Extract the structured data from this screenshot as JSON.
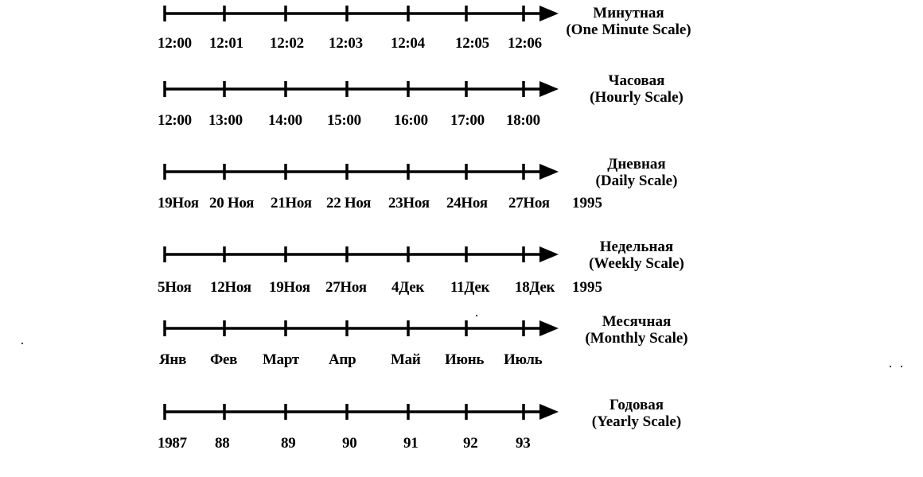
{
  "scales": [
    {
      "title_ru": "Минутная",
      "title_en": "(One Minute Scale)",
      "ticks": [
        "12:00",
        "12:01",
        "12:02",
        "12:03",
        "12:04",
        "12:05",
        "12:06"
      ],
      "year": ""
    },
    {
      "title_ru": "Часовая",
      "title_en": "(Hourly Scale)",
      "ticks": [
        "12:00",
        "13:00",
        "14:00",
        "15:00",
        "16:00",
        "17:00",
        "18:00"
      ],
      "year": ""
    },
    {
      "title_ru": "Дневная",
      "title_en": "(Daily Scale)",
      "ticks": [
        "19Ноя",
        "20 Ноя",
        "21Ноя",
        "22 Ноя",
        "23Ноя",
        "24Ноя",
        "27Ноя"
      ],
      "year": "1995"
    },
    {
      "title_ru": "Недельная",
      "title_en": "(Weekly Scale)",
      "ticks": [
        "5Ноя",
        "12Ноя",
        "19Ноя",
        "27Ноя",
        "4Дек",
        "11Дек",
        "18Дек"
      ],
      "year": "1995"
    },
    {
      "title_ru": "Месячная",
      "title_en": "(Monthly Scale)",
      "ticks": [
        "Янв",
        "Фев",
        "Март",
        "Апр",
        "Май",
        "Июнь",
        "Июль"
      ],
      "year": ""
    },
    {
      "title_ru": "Годовая",
      "title_en": "(Yearly Scale)",
      "ticks": [
        "1987",
        "88",
        "89",
        "90",
        "91",
        "92",
        "93"
      ],
      "year": ""
    }
  ]
}
